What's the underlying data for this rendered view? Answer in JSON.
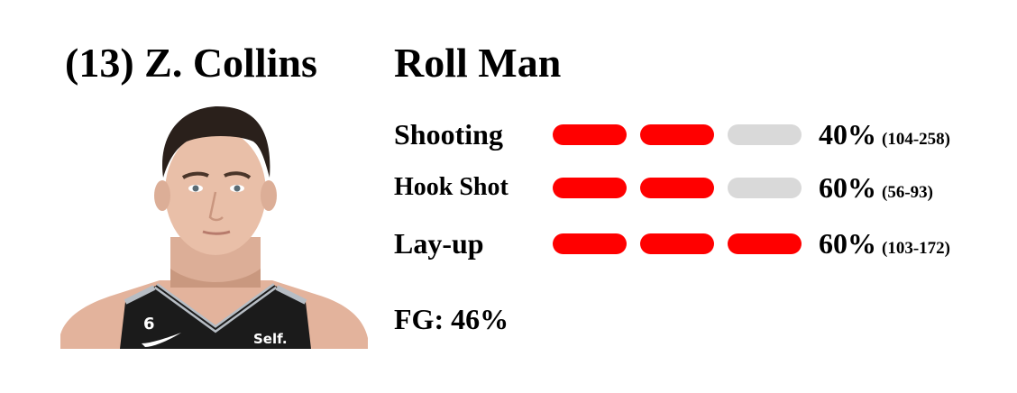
{
  "player": {
    "name": "(13) Z. Collins",
    "role": "Roll Man"
  },
  "photo": {
    "jersey_number": "6",
    "sponsor": "Self."
  },
  "stats": [
    {
      "label": "Shooting",
      "pct": "40%",
      "made": "(104-258)",
      "filled": 2,
      "total": 3
    },
    {
      "label": "Hook Shot",
      "pct": "60%",
      "made": "(56-93)",
      "filled": 2,
      "total": 3
    },
    {
      "label": "Lay-up",
      "pct": "60%",
      "made": "(103-172)",
      "filled": 3,
      "total": 3
    }
  ],
  "fg": "FG: 46%",
  "colors": {
    "bar_on": "#ff0000",
    "bar_off": "#d9d9d9",
    "jersey": "#1a1a1a",
    "jersey_trim": "#b7bdc4",
    "hair": "#2b211c",
    "skin": "#e8bda6"
  }
}
